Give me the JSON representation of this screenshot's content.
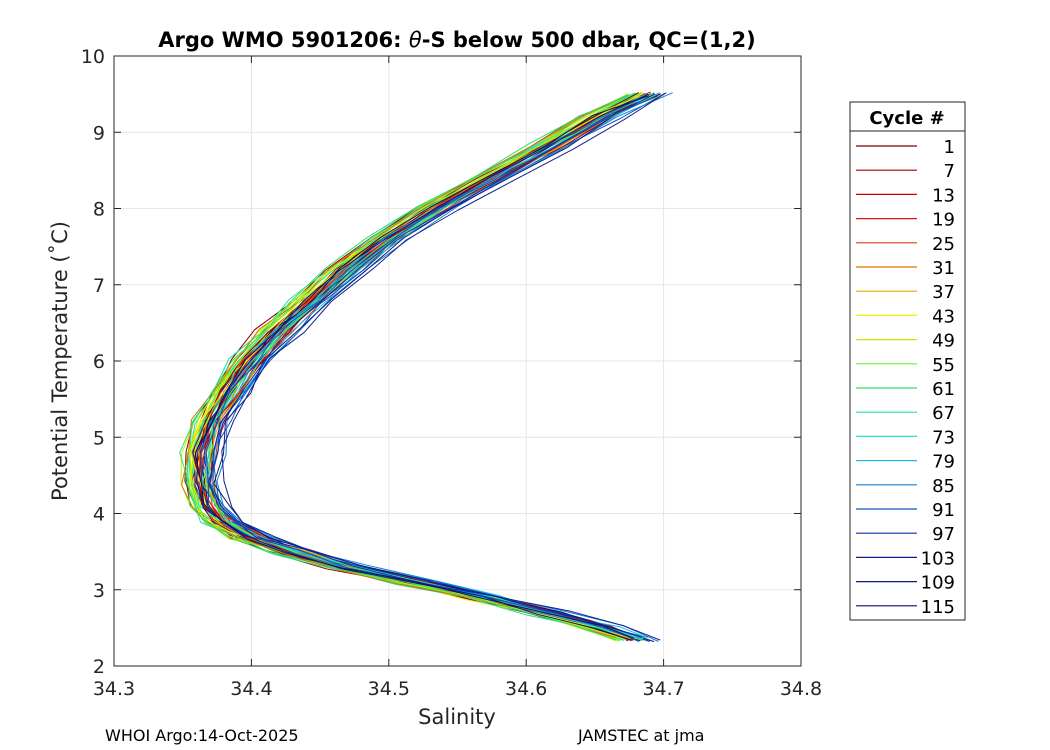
{
  "chart_data": {
    "type": "line",
    "title_prefix": "Argo WMO 5901206: ",
    "title_theta": "θ",
    "title_suffix": "-S below 500 dbar,  QC=(1,2)",
    "xlabel": "Salinity",
    "ylabel": "Potential Temperature (˚C)",
    "xlim": [
      34.3,
      34.8
    ],
    "ylim": [
      2,
      10
    ],
    "xticks": [
      "34.3",
      "34.4",
      "34.5",
      "34.6",
      "34.7",
      "34.8"
    ],
    "yticks": [
      "2",
      "3",
      "4",
      "5",
      "6",
      "7",
      "8",
      "9",
      "10"
    ],
    "grid": true,
    "legend": {
      "title": "Cycle #",
      "position": "right",
      "entries": [
        {
          "label": "1",
          "color": "#800000"
        },
        {
          "label": "7",
          "color": "#A00000"
        },
        {
          "label": "13",
          "color": "#C80000"
        },
        {
          "label": "19",
          "color": "#E01010"
        },
        {
          "label": "25",
          "color": "#E83810"
        },
        {
          "label": "31",
          "color": "#E07000"
        },
        {
          "label": "37",
          "color": "#E0A800"
        },
        {
          "label": "43",
          "color": "#F0F000"
        },
        {
          "label": "49",
          "color": "#B8F000"
        },
        {
          "label": "55",
          "color": "#70F030"
        },
        {
          "label": "61",
          "color": "#30E060"
        },
        {
          "label": "67",
          "color": "#20E0A0"
        },
        {
          "label": "73",
          "color": "#20E0D0"
        },
        {
          "label": "79",
          "color": "#20B8E8"
        },
        {
          "label": "85",
          "color": "#1080D0"
        },
        {
          "label": "91",
          "color": "#1050C0"
        },
        {
          "label": "97",
          "color": "#1030A8"
        },
        {
          "label": "103",
          "color": "#102090"
        },
        {
          "label": "109",
          "color": "#101878"
        },
        {
          "label": "115",
          "color": "#101060"
        }
      ]
    },
    "base_profile": {
      "theta": [
        9.5,
        9.2,
        8.8,
        8.4,
        8.0,
        7.6,
        7.2,
        6.8,
        6.4,
        6.0,
        5.6,
        5.2,
        4.8,
        4.4,
        4.1,
        3.9,
        3.7,
        3.5,
        3.3,
        3.1,
        2.9,
        2.7,
        2.5,
        2.35
      ],
      "salinity": [
        34.69,
        34.655,
        34.615,
        34.575,
        34.535,
        34.5,
        34.47,
        34.445,
        34.42,
        34.4,
        34.385,
        34.372,
        34.365,
        34.365,
        34.37,
        34.38,
        34.4,
        34.43,
        34.47,
        34.52,
        34.57,
        34.615,
        34.655,
        34.68
      ]
    }
  },
  "footer": {
    "left": "WHOI Argo:14-Oct-2025",
    "right": "JAMSTEC at jma"
  }
}
